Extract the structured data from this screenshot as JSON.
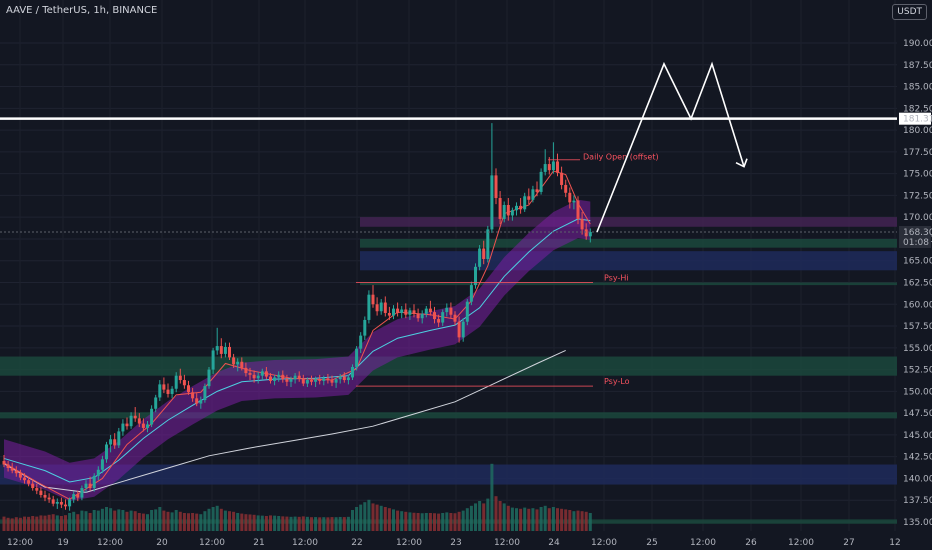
{
  "header": {
    "title": "AAVE / TetherUS, 1h, BINANCE"
  },
  "currency_badge": "USDT",
  "colors": {
    "background": "#131722",
    "up": "#26a69a",
    "down": "#ef5350",
    "band": "#7b1fa2",
    "annotation": "#f7525f",
    "white": "#ffffff"
  },
  "chart_data": {
    "type": "candlestick",
    "ylim": [
      134,
      193
    ],
    "y_ticks": [
      135,
      137.5,
      140,
      142.5,
      145,
      147.5,
      150,
      152.5,
      155,
      157.5,
      160,
      162.5,
      165,
      167.5,
      170,
      172.5,
      175,
      177.5,
      180,
      182.5,
      185,
      187.5,
      190
    ],
    "x_ticks": [
      "12:00",
      "19",
      "12:00",
      "20",
      "12:00",
      "21",
      "12:00",
      "22",
      "12:00",
      "23",
      "12:00",
      "24",
      "12:00",
      "25",
      "12:00",
      "26",
      "12:00",
      "27",
      "12"
    ],
    "last_price": 168.3,
    "countdown": "01:08",
    "resistance_level": 181.31,
    "annotations": [
      {
        "label": "Daily Open (offset)",
        "price": 176.6
      },
      {
        "label": "Psy-Hi",
        "price": 162.5
      },
      {
        "label": "Psy-Lo",
        "price": 150.6
      }
    ],
    "zones": [
      {
        "type": "supply",
        "low": 168.9,
        "high": 170.0
      },
      {
        "type": "demand",
        "low": 166.5,
        "high": 167.5
      },
      {
        "type": "blue",
        "low": 163.9,
        "high": 166.1
      },
      {
        "type": "demand",
        "low": 162.2,
        "high": 162.5
      },
      {
        "type": "demand",
        "low": 151.8,
        "high": 154.0
      },
      {
        "type": "demand",
        "low": 146.9,
        "high": 147.6
      },
      {
        "type": "blue",
        "low": 139.3,
        "high": 141.6
      },
      {
        "type": "demand",
        "low": 134.8,
        "high": 135.3
      }
    ],
    "projection": [
      {
        "t": "24 12:00",
        "price": 168.3
      },
      {
        "t": "25 06:00",
        "price": 187.6
      },
      {
        "t": "25 09:00",
        "price": 181.3
      },
      {
        "t": "25 12:00",
        "price": 187.6
      },
      {
        "t": "25 21:00",
        "price": 175.8
      }
    ],
    "candles": [
      [
        142.0,
        142.7,
        141.3,
        141.6,
        120
      ],
      [
        141.6,
        142.0,
        140.8,
        141.2,
        110
      ],
      [
        141.2,
        141.8,
        140.6,
        140.9,
        105
      ],
      [
        140.9,
        141.4,
        140.2,
        140.6,
        115
      ],
      [
        140.6,
        141.0,
        139.8,
        140.1,
        110
      ],
      [
        140.1,
        140.6,
        139.4,
        139.8,
        120
      ],
      [
        139.8,
        140.2,
        139.1,
        139.4,
        118
      ],
      [
        139.4,
        139.9,
        138.6,
        138.9,
        125
      ],
      [
        138.9,
        139.4,
        138.2,
        138.6,
        120
      ],
      [
        138.6,
        139.0,
        137.8,
        138.1,
        130
      ],
      [
        138.1,
        138.6,
        137.4,
        137.8,
        128
      ],
      [
        137.8,
        138.3,
        137.2,
        137.6,
        135
      ],
      [
        137.6,
        138.0,
        136.8,
        137.1,
        140
      ],
      [
        137.1,
        137.7,
        136.5,
        137.3,
        130
      ],
      [
        137.3,
        137.8,
        136.6,
        137.0,
        125
      ],
      [
        137.0,
        137.6,
        136.4,
        136.8,
        132
      ],
      [
        136.8,
        137.8,
        136.3,
        137.6,
        150
      ],
      [
        137.6,
        138.5,
        137.2,
        138.2,
        160
      ],
      [
        138.2,
        138.6,
        137.4,
        137.8,
        140
      ],
      [
        137.8,
        139.2,
        137.5,
        138.9,
        170
      ],
      [
        138.9,
        139.8,
        138.4,
        139.4,
        165
      ],
      [
        139.4,
        140.2,
        138.6,
        138.9,
        150
      ],
      [
        138.9,
        140.6,
        138.5,
        140.3,
        175
      ],
      [
        140.3,
        141.4,
        139.8,
        141.0,
        170
      ],
      [
        141.0,
        142.6,
        140.6,
        142.2,
        185
      ],
      [
        142.2,
        144.2,
        141.8,
        143.9,
        200
      ],
      [
        143.9,
        145.0,
        143.0,
        144.5,
        190
      ],
      [
        144.5,
        145.2,
        143.4,
        143.8,
        170
      ],
      [
        143.8,
        145.8,
        143.5,
        145.4,
        180
      ],
      [
        145.4,
        146.8,
        144.9,
        146.3,
        175
      ],
      [
        146.3,
        147.0,
        145.6,
        146.0,
        160
      ],
      [
        146.0,
        147.6,
        145.7,
        147.2,
        170
      ],
      [
        147.2,
        148.2,
        146.5,
        146.9,
        165
      ],
      [
        146.9,
        147.5,
        145.9,
        146.3,
        150
      ],
      [
        146.3,
        146.9,
        145.4,
        145.8,
        145
      ],
      [
        145.8,
        146.6,
        145.3,
        146.2,
        140
      ],
      [
        146.2,
        148.4,
        145.9,
        148.0,
        175
      ],
      [
        148.0,
        149.6,
        147.6,
        149.3,
        180
      ],
      [
        149.3,
        151.3,
        148.9,
        150.8,
        200
      ],
      [
        150.8,
        151.6,
        149.8,
        150.2,
        170
      ],
      [
        150.2,
        150.9,
        149.3,
        149.7,
        160
      ],
      [
        149.7,
        150.6,
        149.2,
        150.3,
        155
      ],
      [
        150.3,
        152.2,
        149.9,
        151.8,
        175
      ],
      [
        151.8,
        152.6,
        150.9,
        151.3,
        160
      ],
      [
        151.3,
        151.9,
        150.3,
        150.7,
        150
      ],
      [
        150.7,
        151.2,
        149.6,
        149.9,
        148
      ],
      [
        149.9,
        150.4,
        148.8,
        149.2,
        150
      ],
      [
        149.2,
        149.8,
        148.3,
        148.6,
        145
      ],
      [
        148.6,
        149.4,
        148.0,
        149.0,
        140
      ],
      [
        149.0,
        150.9,
        148.7,
        150.6,
        165
      ],
      [
        150.6,
        152.8,
        150.3,
        152.5,
        185
      ],
      [
        152.5,
        155.0,
        152.0,
        154.7,
        200
      ],
      [
        154.7,
        157.3,
        154.2,
        155.2,
        210
      ],
      [
        155.2,
        156.1,
        153.8,
        154.3,
        185
      ],
      [
        154.3,
        155.6,
        153.9,
        155.1,
        170
      ],
      [
        155.1,
        155.6,
        153.6,
        153.9,
        165
      ],
      [
        153.9,
        154.3,
        152.7,
        153.1,
        160
      ],
      [
        153.1,
        153.8,
        152.3,
        153.4,
        150
      ],
      [
        153.4,
        153.9,
        152.4,
        152.7,
        145
      ],
      [
        152.7,
        153.3,
        151.7,
        152.1,
        140
      ],
      [
        152.1,
        152.7,
        151.3,
        151.9,
        138
      ],
      [
        151.9,
        152.4,
        151.0,
        151.5,
        135
      ],
      [
        151.5,
        152.2,
        150.9,
        151.8,
        130
      ],
      [
        151.8,
        152.6,
        151.3,
        152.3,
        128
      ],
      [
        152.3,
        152.8,
        151.4,
        151.7,
        125
      ],
      [
        151.7,
        152.1,
        150.9,
        151.2,
        130
      ],
      [
        151.2,
        151.9,
        150.7,
        151.6,
        128
      ],
      [
        151.6,
        152.3,
        151.1,
        151.9,
        125
      ],
      [
        151.9,
        152.4,
        151.0,
        151.4,
        122
      ],
      [
        151.4,
        151.9,
        150.6,
        151.1,
        120
      ],
      [
        151.1,
        151.7,
        150.5,
        151.4,
        118
      ],
      [
        151.4,
        152.1,
        150.9,
        151.8,
        120
      ],
      [
        151.8,
        152.3,
        151.1,
        151.5,
        118
      ],
      [
        151.5,
        151.9,
        150.6,
        150.9,
        122
      ],
      [
        150.9,
        151.6,
        150.5,
        151.3,
        118
      ],
      [
        151.3,
        151.8,
        150.7,
        151.1,
        115
      ],
      [
        151.1,
        151.7,
        150.5,
        151.4,
        116
      ],
      [
        151.4,
        151.9,
        150.8,
        151.2,
        114
      ],
      [
        151.2,
        151.8,
        150.7,
        151.5,
        115
      ],
      [
        151.5,
        152.0,
        150.9,
        151.3,
        114
      ],
      [
        151.3,
        151.8,
        150.6,
        151.0,
        116
      ],
      [
        151.0,
        151.6,
        150.4,
        151.4,
        115
      ],
      [
        151.4,
        152.0,
        150.9,
        151.7,
        117
      ],
      [
        151.7,
        152.2,
        151.0,
        151.3,
        116
      ],
      [
        151.3,
        151.9,
        150.8,
        151.6,
        118
      ],
      [
        151.6,
        153.1,
        151.3,
        152.8,
        175
      ],
      [
        152.8,
        155.2,
        152.4,
        154.9,
        200
      ],
      [
        154.9,
        156.8,
        154.4,
        156.4,
        220
      ],
      [
        156.4,
        158.6,
        155.9,
        158.2,
        240
      ],
      [
        158.2,
        161.6,
        157.8,
        161.1,
        260
      ],
      [
        161.1,
        162.2,
        159.6,
        160.0,
        230
      ],
      [
        160.0,
        160.8,
        158.7,
        159.2,
        220
      ],
      [
        159.2,
        160.6,
        158.8,
        160.2,
        210
      ],
      [
        160.2,
        160.9,
        158.6,
        159.0,
        200
      ],
      [
        159.0,
        159.7,
        158.2,
        158.7,
        190
      ],
      [
        158.7,
        159.9,
        158.3,
        159.5,
        180
      ],
      [
        159.5,
        160.2,
        158.6,
        159.0,
        170
      ],
      [
        159.0,
        159.8,
        158.4,
        159.4,
        165
      ],
      [
        159.4,
        160.1,
        158.4,
        158.8,
        160
      ],
      [
        158.8,
        159.6,
        158.2,
        159.3,
        155
      ],
      [
        159.3,
        160.0,
        158.5,
        158.9,
        152
      ],
      [
        158.9,
        159.5,
        158.0,
        158.4,
        150
      ],
      [
        158.4,
        159.3,
        157.8,
        158.9,
        148
      ],
      [
        158.9,
        159.8,
        158.5,
        159.5,
        150
      ],
      [
        159.5,
        160.4,
        158.7,
        159.1,
        150
      ],
      [
        159.1,
        159.7,
        157.8,
        158.3,
        148
      ],
      [
        158.3,
        158.8,
        157.4,
        157.9,
        145
      ],
      [
        157.9,
        159.4,
        157.5,
        159.1,
        150
      ],
      [
        159.1,
        160.1,
        158.6,
        159.6,
        155
      ],
      [
        159.6,
        160.2,
        158.4,
        158.8,
        150
      ],
      [
        158.8,
        159.2,
        157.6,
        158.0,
        148
      ],
      [
        158.0,
        158.6,
        155.6,
        156.2,
        160
      ],
      [
        156.2,
        158.4,
        155.7,
        158.0,
        170
      ],
      [
        158.0,
        160.6,
        157.6,
        160.3,
        190
      ],
      [
        160.3,
        162.6,
        159.9,
        162.2,
        210
      ],
      [
        162.2,
        164.7,
        161.8,
        164.3,
        230
      ],
      [
        164.3,
        166.8,
        163.9,
        166.4,
        250
      ],
      [
        166.4,
        167.3,
        164.6,
        165.2,
        230
      ],
      [
        165.2,
        169.0,
        164.8,
        168.6,
        270
      ],
      [
        168.6,
        180.8,
        168.2,
        174.8,
        560
      ],
      [
        174.8,
        175.6,
        171.5,
        172.2,
        290
      ],
      [
        172.2,
        173.0,
        169.2,
        169.8,
        250
      ],
      [
        169.8,
        171.8,
        169.4,
        171.4,
        230
      ],
      [
        171.4,
        172.2,
        169.6,
        170.2,
        210
      ],
      [
        170.2,
        171.1,
        169.6,
        170.8,
        195
      ],
      [
        170.8,
        171.7,
        170.2,
        171.3,
        190
      ],
      [
        171.3,
        172.2,
        170.4,
        170.9,
        185
      ],
      [
        170.9,
        172.8,
        170.6,
        172.4,
        195
      ],
      [
        172.4,
        173.3,
        171.5,
        172.0,
        185
      ],
      [
        172.0,
        173.6,
        171.7,
        173.2,
        190
      ],
      [
        173.2,
        174.1,
        172.4,
        172.9,
        180
      ],
      [
        172.9,
        175.6,
        172.6,
        175.2,
        200
      ],
      [
        175.2,
        177.8,
        174.8,
        176.1,
        210
      ],
      [
        176.1,
        176.9,
        174.9,
        175.4,
        190
      ],
      [
        175.4,
        178.6,
        175.0,
        176.4,
        200
      ],
      [
        176.4,
        177.3,
        174.7,
        175.1,
        190
      ],
      [
        175.1,
        175.8,
        173.2,
        173.7,
        185
      ],
      [
        173.7,
        174.3,
        172.3,
        172.8,
        180
      ],
      [
        172.8,
        173.4,
        171.0,
        171.7,
        175
      ],
      [
        171.7,
        172.5,
        170.9,
        171.9,
        165
      ],
      [
        171.9,
        172.4,
        169.2,
        169.8,
        170
      ],
      [
        169.8,
        170.6,
        168.0,
        168.6,
        165
      ],
      [
        168.6,
        169.3,
        167.4,
        167.8,
        160
      ],
      [
        167.8,
        168.7,
        167.1,
        168.3,
        150
      ]
    ],
    "ma_200": [
      [
        0,
        141.7
      ],
      [
        10,
        139.0
      ],
      [
        20,
        138.4
      ],
      [
        30,
        139.8
      ],
      [
        40,
        141.2
      ],
      [
        50,
        142.6
      ],
      [
        60,
        143.5
      ],
      [
        70,
        144.3
      ],
      [
        80,
        145.1
      ],
      [
        90,
        146.0
      ],
      [
        100,
        147.4
      ],
      [
        110,
        148.8
      ],
      [
        120,
        151.0
      ],
      [
        130,
        153.2
      ],
      [
        137,
        154.7
      ]
    ],
    "ema_fast": [
      [
        0,
        141.8
      ],
      [
        8,
        139.6
      ],
      [
        16,
        137.6
      ],
      [
        24,
        140.0
      ],
      [
        30,
        143.9
      ],
      [
        36,
        146.3
      ],
      [
        42,
        149.6
      ],
      [
        48,
        149.9
      ],
      [
        54,
        153.2
      ],
      [
        60,
        152.4
      ],
      [
        70,
        151.5
      ],
      [
        80,
        151.3
      ],
      [
        86,
        152.6
      ],
      [
        90,
        157.0
      ],
      [
        96,
        159.1
      ],
      [
        104,
        158.8
      ],
      [
        110,
        158.3
      ],
      [
        114,
        160.4
      ],
      [
        118,
        164.4
      ],
      [
        122,
        170.4
      ],
      [
        128,
        171.4
      ],
      [
        134,
        175.3
      ],
      [
        137,
        174.9
      ],
      [
        140,
        171.6
      ],
      [
        143,
        169.2
      ]
    ],
    "band_mid": [
      [
        0,
        142.3
      ],
      [
        10,
        140.9
      ],
      [
        16,
        139.6
      ],
      [
        22,
        140.1
      ],
      [
        28,
        142.1
      ],
      [
        34,
        144.6
      ],
      [
        40,
        146.7
      ],
      [
        46,
        148.4
      ],
      [
        52,
        150.0
      ],
      [
        58,
        151.1
      ],
      [
        66,
        151.4
      ],
      [
        76,
        151.5
      ],
      [
        84,
        151.8
      ],
      [
        90,
        154.6
      ],
      [
        96,
        156.1
      ],
      [
        104,
        157.0
      ],
      [
        110,
        157.6
      ],
      [
        116,
        159.6
      ],
      [
        122,
        163.2
      ],
      [
        128,
        166.0
      ],
      [
        134,
        168.4
      ],
      [
        140,
        169.8
      ],
      [
        143,
        169.6
      ]
    ]
  }
}
